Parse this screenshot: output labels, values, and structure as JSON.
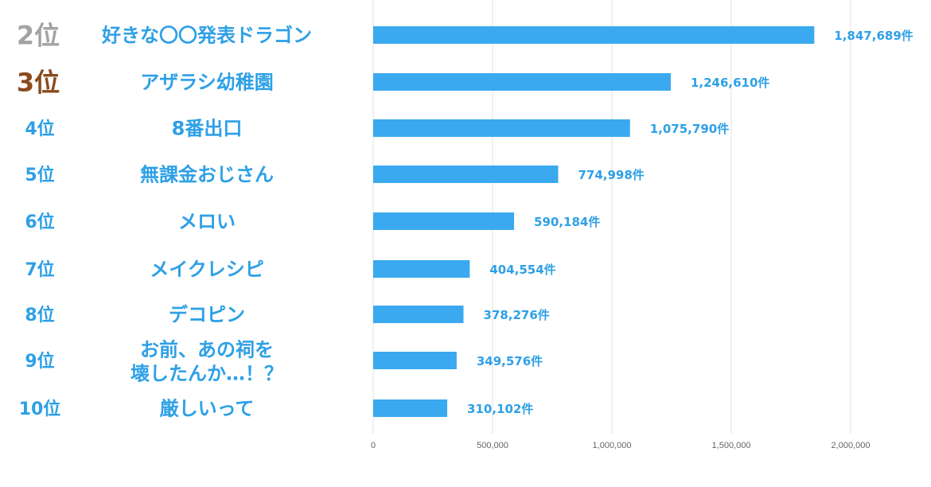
{
  "chart_data": {
    "type": "bar",
    "orientation": "horizontal",
    "categories": [
      {
        "rank": "2位",
        "name": [
          "好きな〇〇発表ドラゴン"
        ]
      },
      {
        "rank": "3位",
        "name": [
          "アザラシ幼稚園"
        ]
      },
      {
        "rank": "4位",
        "name": [
          "8番出口"
        ]
      },
      {
        "rank": "5位",
        "name": [
          "無課金おじさん"
        ]
      },
      {
        "rank": "6位",
        "name": [
          "メロい"
        ]
      },
      {
        "rank": "7位",
        "name": [
          "メイクレシピ"
        ]
      },
      {
        "rank": "8位",
        "name": [
          "デコピン"
        ]
      },
      {
        "rank": "9位",
        "name": [
          "お前、あの祠を",
          "壊したんか…！？"
        ]
      },
      {
        "rank": "10位",
        "name": [
          "厳しいって"
        ]
      }
    ],
    "values": [
      1847689,
      1246610,
      1075790,
      774998,
      590184,
      404554,
      378276,
      349576,
      310102
    ],
    "value_labels": [
      "1,847,689件",
      "1,246,610件",
      "1,075,790件",
      "774,998件",
      "590,184件",
      "404,554件",
      "378,276件",
      "349,576件",
      "310,102件"
    ],
    "xlim": [
      0,
      2000000
    ],
    "xticks": [
      0,
      500000,
      1000000,
      1500000,
      2000000
    ],
    "xtick_labels": [
      "0",
      "500,000",
      "1,000,000",
      "1,500,000",
      "2,000,000"
    ],
    "grid": true,
    "colors": {
      "bar": "#3aa9ef",
      "text": "#2ea0e6",
      "rank2": "#a3a3a3",
      "rank3": "#8a4a1c",
      "grid": "#e0e0e0"
    }
  }
}
